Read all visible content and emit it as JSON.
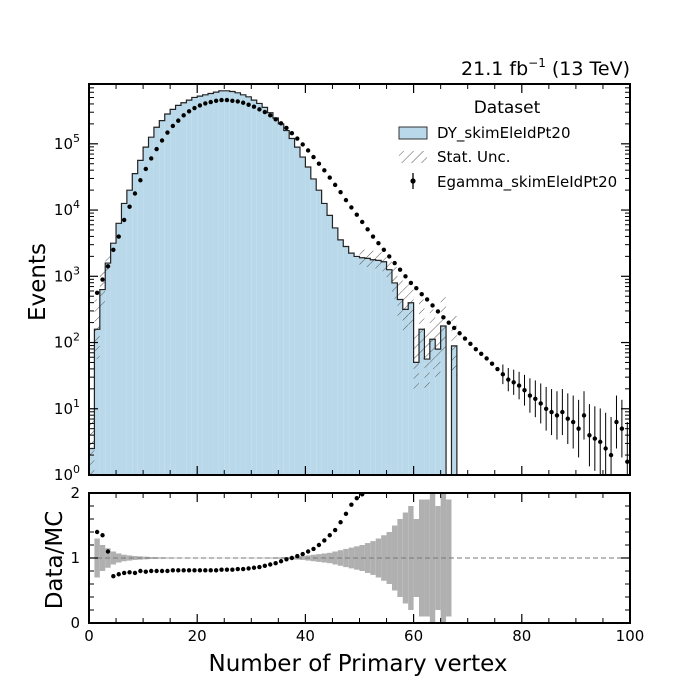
{
  "chart_data": {
    "type": "histogram",
    "lumi": {
      "main": "21.1 fb",
      "sup": "−1",
      "energy": " (13 TeV)"
    },
    "xlabel": "Number of Primary vertex",
    "ylabel_top": "Events",
    "ylabel_bottom": "Data/MC",
    "xlim": [
      0,
      100
    ],
    "ylim_top_log": [
      1,
      800000
    ],
    "ylim_bottom": [
      0,
      2
    ],
    "yscale_top": "log",
    "x_ticks": [
      "0",
      "20",
      "40",
      "60",
      "80",
      "100"
    ],
    "y_ticks_top": [
      {
        "base": "10",
        "exp": "0"
      },
      {
        "base": "10",
        "exp": "1"
      },
      {
        "base": "10",
        "exp": "2"
      },
      {
        "base": "10",
        "exp": "3"
      },
      {
        "base": "10",
        "exp": "4"
      },
      {
        "base": "10",
        "exp": "5"
      }
    ],
    "y_ticks_bottom": [
      "0",
      "1",
      "2"
    ],
    "legend": {
      "title": "Dataset",
      "location": "top-right",
      "entries": [
        "DY_skimEleIdPt20",
        "Stat. Unc.",
        "Egamma_skimEleIdPt20"
      ]
    },
    "colors": {
      "mc_fill": "#b9d9ea",
      "mc_edge": "#222222",
      "ratio_unc": "#b0b0b0",
      "data": "#000000"
    },
    "bin_width": 1,
    "mc_log10": [
      0.4,
      2.2,
      2.8,
      3.2,
      3.5,
      3.8,
      4.1,
      4.3,
      4.55,
      4.75,
      4.95,
      5.1,
      5.25,
      5.35,
      5.45,
      5.52,
      5.58,
      5.62,
      5.66,
      5.7,
      5.72,
      5.74,
      5.76,
      5.78,
      5.8,
      5.8,
      5.79,
      5.77,
      5.74,
      5.71,
      5.66,
      5.61,
      5.55,
      5.47,
      5.39,
      5.3,
      5.2,
      5.08,
      4.95,
      4.8,
      4.65,
      4.47,
      4.3,
      4.1,
      3.92,
      3.73,
      3.55,
      3.45,
      3.35,
      3.3,
      3.28,
      3.27,
      3.25,
      3.24,
      3.22,
      3.1,
      2.9,
      2.65,
      2.5,
      2.6,
      1.7,
      2.2,
      1.75,
      2.05,
      1.9,
      2.25,
      null,
      1.95,
      null,
      null
    ],
    "data_log10": [
      null,
      2.75,
      2.95,
      3.15,
      3.4,
      3.6,
      3.85,
      4.05,
      4.25,
      4.45,
      4.62,
      4.78,
      4.92,
      5.05,
      5.17,
      5.27,
      5.35,
      5.43,
      5.49,
      5.54,
      5.58,
      5.61,
      5.63,
      5.65,
      5.66,
      5.66,
      5.65,
      5.64,
      5.62,
      5.59,
      5.56,
      5.52,
      5.48,
      5.43,
      5.37,
      5.31,
      5.24,
      5.16,
      5.08,
      4.99,
      4.9,
      4.8,
      4.7,
      4.6,
      4.49,
      4.38,
      4.27,
      4.15,
      4.04,
      3.93,
      3.82,
      3.71,
      3.6,
      3.5,
      3.4,
      3.3,
      3.2,
      3.1,
      3.0,
      2.9,
      2.82,
      2.73,
      2.65,
      2.56,
      2.47,
      2.38,
      2.3,
      2.22,
      2.14,
      2.06,
      1.98,
      1.9,
      1.83,
      1.76,
      1.68,
      1.6,
      1.52,
      1.44,
      1.4,
      1.35,
      1.28,
      1.2,
      1.15,
      1.08,
      1.0,
      0.95,
      0.9,
      0.95,
      0.85,
      0.8,
      0.7,
      0.9,
      0.6,
      0.55,
      0.5,
      0.4,
      0.3,
      0.8,
      0.7,
      0.2
    ],
    "ratio": [
      null,
      1.4,
      1.35,
      1.1,
      0.72,
      0.75,
      0.77,
      0.78,
      0.77,
      0.8,
      0.79,
      0.8,
      0.8,
      0.8,
      0.8,
      0.81,
      0.81,
      0.81,
      0.81,
      0.81,
      0.81,
      0.81,
      0.81,
      0.81,
      0.82,
      0.82,
      0.82,
      0.83,
      0.83,
      0.84,
      0.85,
      0.86,
      0.88,
      0.9,
      0.92,
      0.95,
      0.98,
      1.0,
      1.03,
      1.06,
      1.1,
      1.14,
      1.2,
      1.27,
      1.35,
      1.43,
      1.55,
      1.68,
      1.82,
      1.92,
      1.98
    ],
    "ratio_unc": [
      null,
      0.3,
      0.2,
      0.15,
      0.1,
      0.07,
      0.05,
      0.04,
      0.03,
      0.025,
      0.02,
      0.015,
      0.012,
      0.01,
      0.008,
      0.006,
      0.005,
      0.004,
      0.004,
      0.003,
      0.003,
      0.003,
      0.003,
      0.003,
      0.003,
      0.003,
      0.003,
      0.003,
      0.003,
      0.004,
      0.004,
      0.005,
      0.006,
      0.008,
      0.01,
      0.012,
      0.015,
      0.02,
      0.025,
      0.03,
      0.04,
      0.05,
      0.06,
      0.07,
      0.08,
      0.1,
      0.12,
      0.14,
      0.16,
      0.18,
      0.2,
      0.23,
      0.26,
      0.3,
      0.35,
      0.4,
      0.5,
      0.6,
      0.7,
      0.8,
      0.6,
      0.9,
      0.9,
      1.0,
      0.8,
      1.0,
      0.9
    ]
  }
}
